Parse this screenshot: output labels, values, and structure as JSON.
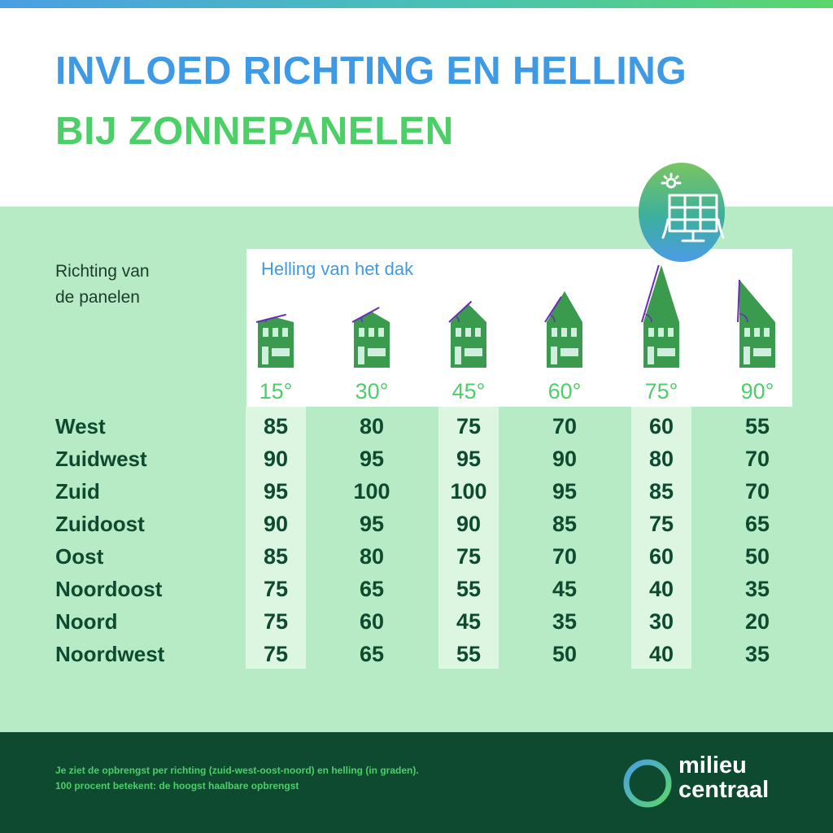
{
  "header": {
    "title_line1": "INVLOED RICHTING EN HELLING",
    "title_line2": "BIJ ZONNEPANELEN"
  },
  "icons": {
    "badge": "solar-panel-icon",
    "sun": "sun-icon",
    "house": "house-icon",
    "logo": "ring-logo-icon"
  },
  "colors": {
    "title_blue": "#3f9ae6",
    "title_green": "#4dcf68",
    "panel_bg": "#b7ebc5",
    "column_highlight": "#dcf6e2",
    "house_green": "#3a9a4e",
    "roof_line": "#6a2ab8",
    "text_dark": "#0e4a30",
    "footer_bg": "#0e4a30"
  },
  "chart_data": {
    "type": "table",
    "row_header": "Richting van\nde panelen",
    "column_header": "Helling van het dak",
    "columns": [
      "15°",
      "30°",
      "45°",
      "60°",
      "75°",
      "90°"
    ],
    "highlighted_columns": [
      "15°",
      "45°",
      "75°"
    ],
    "rows": [
      {
        "label": "West",
        "values": [
          85,
          80,
          75,
          70,
          60,
          55
        ]
      },
      {
        "label": "Zuidwest",
        "values": [
          90,
          95,
          95,
          90,
          80,
          70
        ]
      },
      {
        "label": "Zuid",
        "values": [
          95,
          100,
          100,
          95,
          85,
          70
        ]
      },
      {
        "label": "Zuidoost",
        "values": [
          90,
          95,
          90,
          85,
          75,
          65
        ]
      },
      {
        "label": "Oost",
        "values": [
          85,
          80,
          75,
          70,
          60,
          50
        ]
      },
      {
        "label": "Noordoost",
        "values": [
          75,
          65,
          55,
          45,
          40,
          35
        ]
      },
      {
        "label": "Noord",
        "values": [
          75,
          60,
          45,
          35,
          30,
          20
        ]
      },
      {
        "label": "Noordwest",
        "values": [
          75,
          65,
          55,
          50,
          40,
          35
        ]
      }
    ]
  },
  "footer": {
    "note_line1": "Je ziet de opbrengst per richting (zuid-west-oost-noord) en helling (in graden).",
    "note_line2": "100 procent betekent: de hoogst haalbare opbrengst",
    "logo_line1": "milieu",
    "logo_line2": "centraal"
  }
}
